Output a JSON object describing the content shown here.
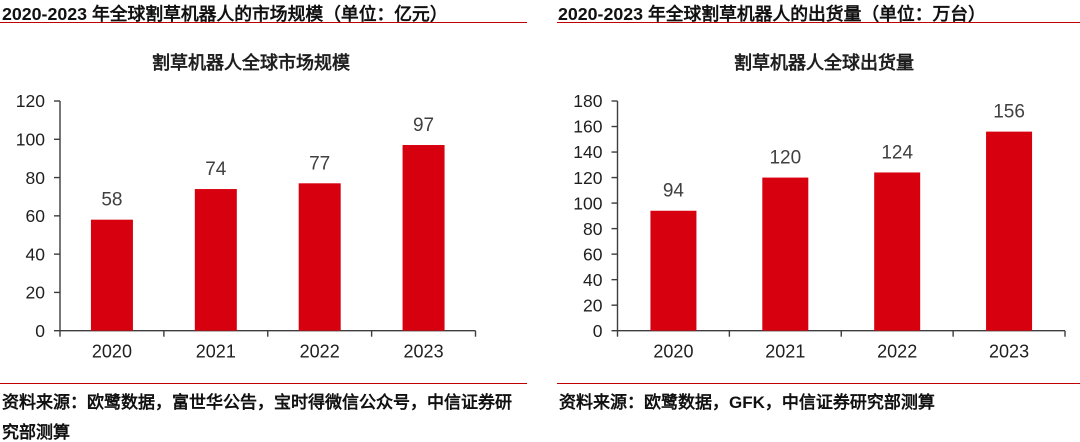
{
  "colors": {
    "background": "#ffffff",
    "accent_rule_red": "#c00000",
    "bar_red": "#d7000f",
    "axis_line": "#3d3d3d",
    "axis_label": "#1f1f1f",
    "data_label": "#404040",
    "text_black": "#111111"
  },
  "figures": [
    {
      "caption": "2020-2023 年全球割草机器人的市场规模（单位：亿元）",
      "source": "资料来源：欧鹭数据，富世华公告，宝时得微信公众号，中信证券研究部测算"
    },
    {
      "caption": "2020-2023 年全球割草机器人的出货量（单位：万台）",
      "source": "资料来源：欧鹭数据，GFK，中信证券研究部测算"
    }
  ],
  "chart_data": [
    {
      "type": "bar",
      "title": "割草机器人全球市场规模",
      "categories": [
        "2020",
        "2021",
        "2022",
        "2023"
      ],
      "values": [
        58,
        74,
        77,
        97
      ],
      "xlabel": "",
      "ylabel": "",
      "ylim": [
        0,
        120
      ],
      "ytick_step": 20,
      "grid": false,
      "legend": false,
      "bar_color": "#d7000f"
    },
    {
      "type": "bar",
      "title": "割草机器人全球出货量",
      "categories": [
        "2020",
        "2021",
        "2022",
        "2023"
      ],
      "values": [
        94,
        120,
        124,
        156
      ],
      "xlabel": "",
      "ylabel": "",
      "ylim": [
        0,
        180
      ],
      "ytick_step": 20,
      "grid": false,
      "legend": false,
      "bar_color": "#d7000f"
    }
  ]
}
